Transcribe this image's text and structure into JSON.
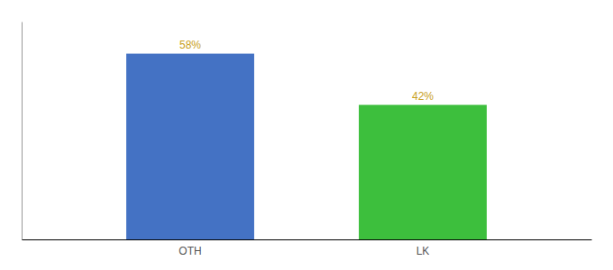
{
  "chart_data": {
    "type": "bar",
    "categories": [
      "OTH",
      "LK"
    ],
    "values": [
      58,
      42
    ],
    "value_labels": [
      "58%",
      "42%"
    ],
    "colors": [
      "#4472C4",
      "#3DBF3D"
    ],
    "ylim": [
      0,
      68
    ],
    "data_labels": true,
    "tick_labels": "x",
    "grid": false
  }
}
